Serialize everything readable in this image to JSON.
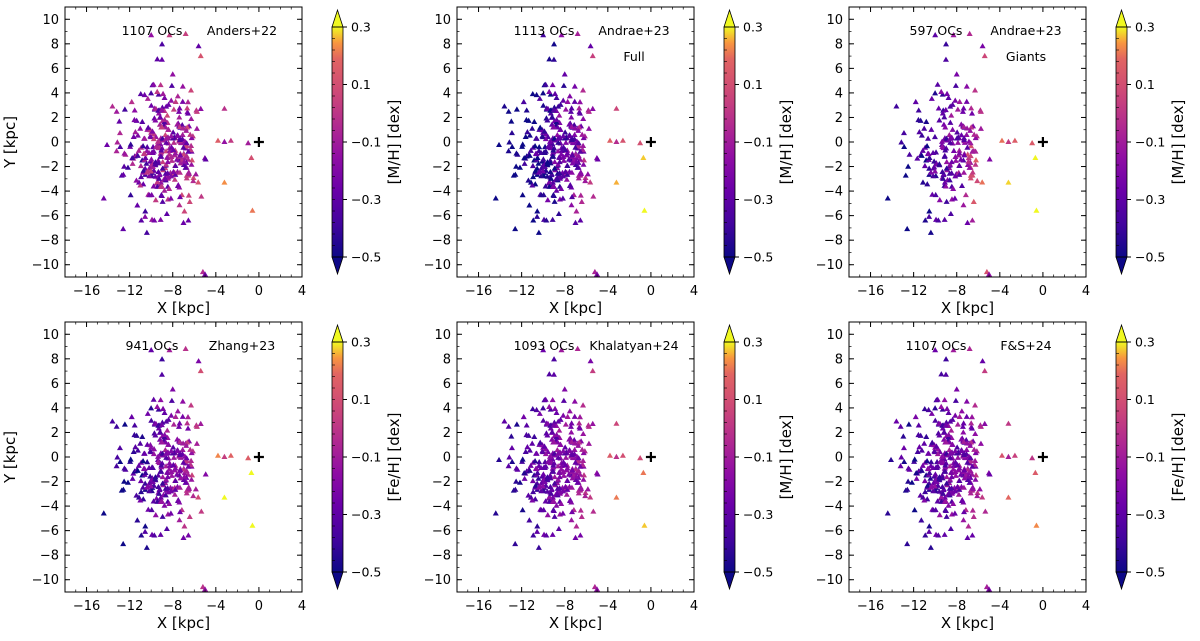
{
  "figure": {
    "shared_axes": {
      "xlabel": "X [kpc]",
      "ylabel": "Y [kpc]",
      "xlim": [
        -18,
        4
      ],
      "ylim": [
        -11,
        11
      ],
      "xticks": [
        -16,
        -12,
        -8,
        -4,
        0,
        4
      ],
      "yticks": [
        -10,
        -8,
        -6,
        -4,
        -2,
        0,
        2,
        4,
        6,
        8,
        10
      ],
      "sun_marker": {
        "x": 0,
        "y": 0,
        "symbol": "+"
      },
      "colorbar": {
        "range": [
          -0.5,
          0.3
        ],
        "ticks": [
          0.3,
          0.1,
          -0.1,
          -0.3,
          -0.5
        ],
        "colormap": "plasma",
        "extend": "both"
      }
    }
  },
  "chart_data": [
    {
      "type": "scatter",
      "label_count": "1107 OCs",
      "label_catalog": "Anders+22",
      "label_sub": "",
      "colorbar_label": "[M/H] [dex]",
      "xlabel": "X [kpc]",
      "ylabel": "Y [kpc]",
      "xlim": [
        -18,
        4
      ],
      "ylim": [
        -11,
        11
      ],
      "style": "anders"
    },
    {
      "type": "scatter",
      "label_count": "1113 OCs",
      "label_catalog": "Andrae+23",
      "label_sub": "Full",
      "colorbar_label": "[M/H] [dex]",
      "xlabel": "X [kpc]",
      "ylabel": "",
      "xlim": [
        -18,
        4
      ],
      "ylim": [
        -11,
        11
      ],
      "style": "full"
    },
    {
      "type": "scatter",
      "label_count": "597 OCs",
      "label_catalog": "Andrae+23",
      "label_sub": "Giants",
      "colorbar_label": "[M/H] [dex]",
      "xlabel": "X [kpc]",
      "ylabel": "",
      "xlim": [
        -18,
        4
      ],
      "ylim": [
        -11,
        11
      ],
      "style": "giants"
    },
    {
      "type": "scatter",
      "label_count": "941 OCs",
      "label_catalog": "Zhang+23",
      "label_sub": "",
      "colorbar_label": "[Fe/H] [dex]",
      "xlabel": "X [kpc]",
      "ylabel": "Y [kpc]",
      "xlim": [
        -18,
        4
      ],
      "ylim": [
        -11,
        11
      ],
      "style": "zhang"
    },
    {
      "type": "scatter",
      "label_count": "1093 OCs",
      "label_catalog": "Khalatyan+24",
      "label_sub": "",
      "colorbar_label": "[M/H] [dex]",
      "xlabel": "X [kpc]",
      "ylabel": "",
      "xlim": [
        -18,
        4
      ],
      "ylim": [
        -11,
        11
      ],
      "style": "khal"
    },
    {
      "type": "scatter",
      "label_count": "1107 OCs",
      "label_catalog": "F&S+24",
      "label_sub": "",
      "colorbar_label": "[Fe/H] [dex]",
      "xlabel": "X [kpc]",
      "ylabel": "",
      "xlim": [
        -18,
        4
      ],
      "ylim": [
        -11,
        11
      ],
      "style": "fs"
    }
  ]
}
